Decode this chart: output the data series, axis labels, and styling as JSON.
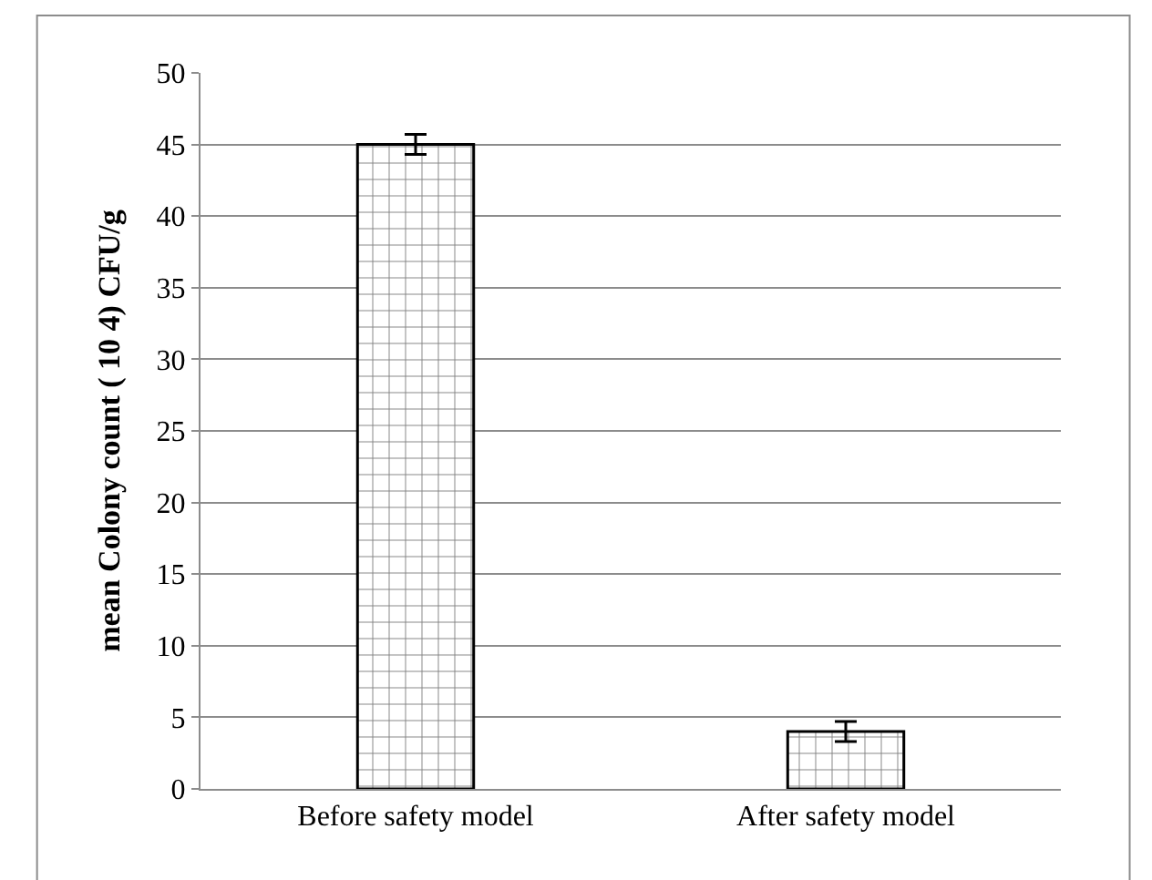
{
  "chart_data": {
    "type": "bar",
    "ylabel": "mean Colony count ( 10 4) CFU/g",
    "categories": [
      "Before safety model",
      "After safety model"
    ],
    "values": [
      45,
      4
    ],
    "errors": [
      0.7,
      0.7
    ],
    "color": "#000000",
    "ylim": [
      0,
      50
    ],
    "yticks": [
      0,
      5,
      10,
      15,
      20,
      25,
      30,
      35,
      40,
      45,
      50
    ],
    "grid": "y",
    "legend": false
  }
}
